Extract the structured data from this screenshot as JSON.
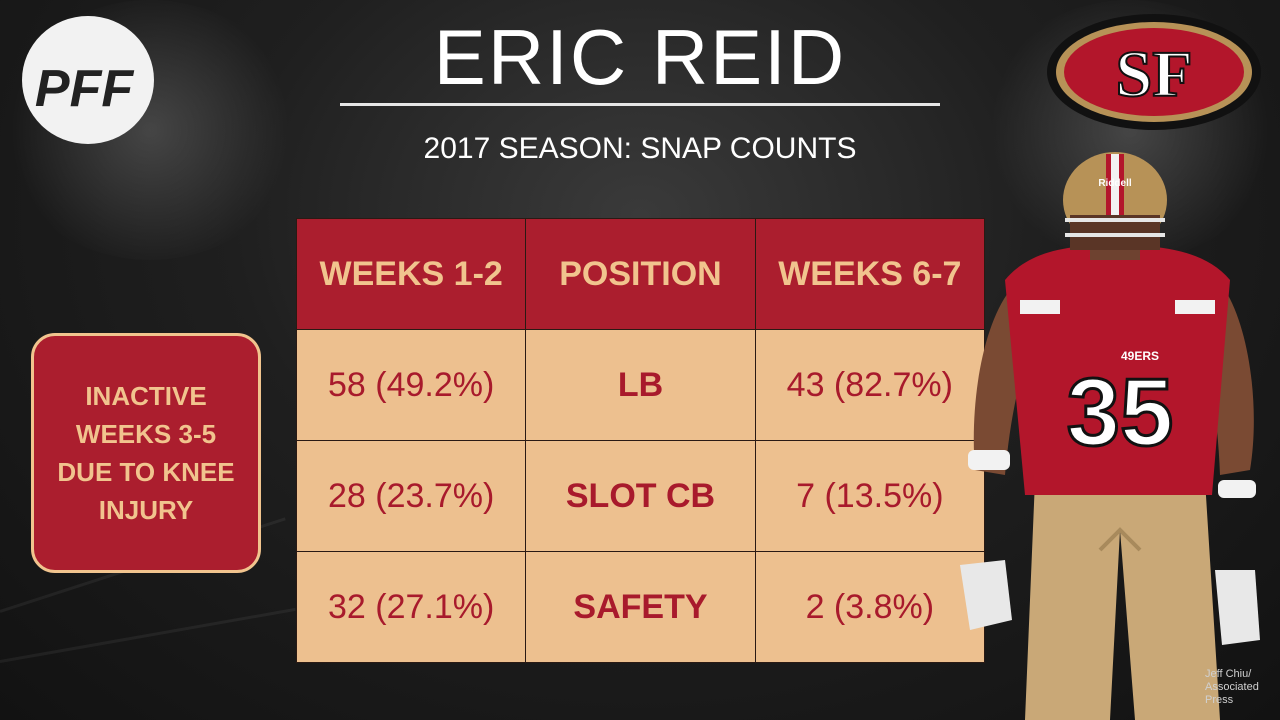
{
  "brand": {
    "pff_logo_text": "PFF",
    "team_logo_text": "SF"
  },
  "header": {
    "title": "ERIC REID",
    "subtitle": "2017 SEASON: SNAP COUNTS"
  },
  "table": {
    "columns": [
      "WEEKS 1-2",
      "POSITION",
      "WEEKS 6-7"
    ],
    "rows": [
      {
        "weeks_1_2": "58 (49.2%)",
        "position": "LB",
        "weeks_6_7": "43 (82.7%)"
      },
      {
        "weeks_1_2": "28 (23.7%)",
        "position": "SLOT CB",
        "weeks_6_7": "7 (13.5%)"
      },
      {
        "weeks_1_2": "32 (27.1%)",
        "position": "SAFETY",
        "weeks_6_7": "2 (3.8%)"
      }
    ]
  },
  "note": {
    "text": "INACTIVE WEEKS 3-5 DUE TO KNEE INJURY"
  },
  "player": {
    "jersey_number": "35",
    "jersey_brand": "49ERS",
    "helmet_brand": "Riddell"
  },
  "photo_credit": {
    "line1": "Jeff Chiu/",
    "line2": "Associated",
    "line3": "Press"
  },
  "colors": {
    "header_red": "#ab1e2e",
    "header_text_gold": "#f1c48e",
    "cell_tan": "#edc08f",
    "cell_text_red": "#a81a2c",
    "background_dark": "#1f1f1f"
  }
}
